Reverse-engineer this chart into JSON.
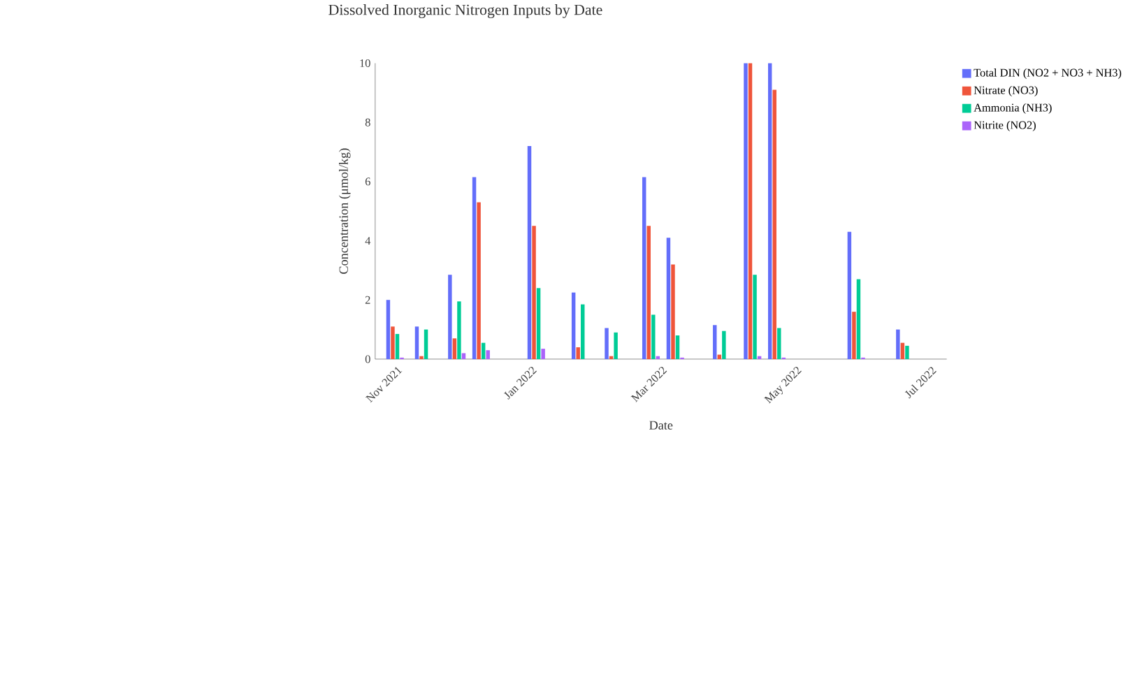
{
  "chart_data": {
    "type": "bar",
    "title": "Dissolved Inorganic Nitrogen Inputs by Date",
    "xlabel": "Date",
    "ylabel": "Concentration (μmol/kg)",
    "x": [
      "2021-10-31",
      "2021-11-13",
      "2021-11-28",
      "2021-12-09",
      "2022-01-03",
      "2022-01-23",
      "2022-02-07",
      "2022-02-24",
      "2022-03-07",
      "2022-03-28",
      "2022-04-11",
      "2022-04-22",
      "2022-05-28",
      "2022-06-19"
    ],
    "series": [
      {
        "name": "Total DIN (NO2 + NO3 + NH3)",
        "color": "#636efa",
        "values": [
          2.0,
          1.1,
          2.85,
          6.15,
          7.2,
          2.25,
          1.05,
          6.15,
          4.1,
          1.15,
          10,
          10,
          4.3,
          1.0
        ]
      },
      {
        "name": "Nitrate (NO3)",
        "color": "#ef553b",
        "values": [
          1.1,
          0.1,
          0.7,
          5.3,
          4.5,
          0.4,
          0.1,
          4.5,
          3.2,
          0.15,
          10,
          9.1,
          1.6,
          0.55
        ]
      },
      {
        "name": "Ammonia (NH3)",
        "color": "#00cc96",
        "values": [
          0.85,
          1.0,
          1.95,
          0.55,
          2.4,
          1.85,
          0.9,
          1.5,
          0.8,
          0.95,
          2.85,
          1.05,
          2.7,
          0.45
        ]
      },
      {
        "name": "Nitrite (NO2)",
        "color": "#ab63fa",
        "values": [
          0.05,
          null,
          0.2,
          0.3,
          0.35,
          null,
          null,
          0.1,
          0.05,
          null,
          0.1,
          0.05,
          0.05,
          null
        ]
      }
    ],
    "xlim": [
      "2021-10-22",
      "2022-07-08"
    ],
    "xticks": [
      {
        "value": "2021-11-01",
        "label": "Nov 2021"
      },
      {
        "value": "2022-01-01",
        "label": "Jan 2022"
      },
      {
        "value": "2022-03-01",
        "label": "Mar 2022"
      },
      {
        "value": "2022-05-01",
        "label": "May 2022"
      },
      {
        "value": "2022-07-01",
        "label": "Jul 2022"
      }
    ],
    "ylim": [
      0,
      10
    ],
    "yticks": [
      0,
      2,
      4,
      6,
      8,
      10
    ],
    "grid": false,
    "legend": "top right"
  }
}
